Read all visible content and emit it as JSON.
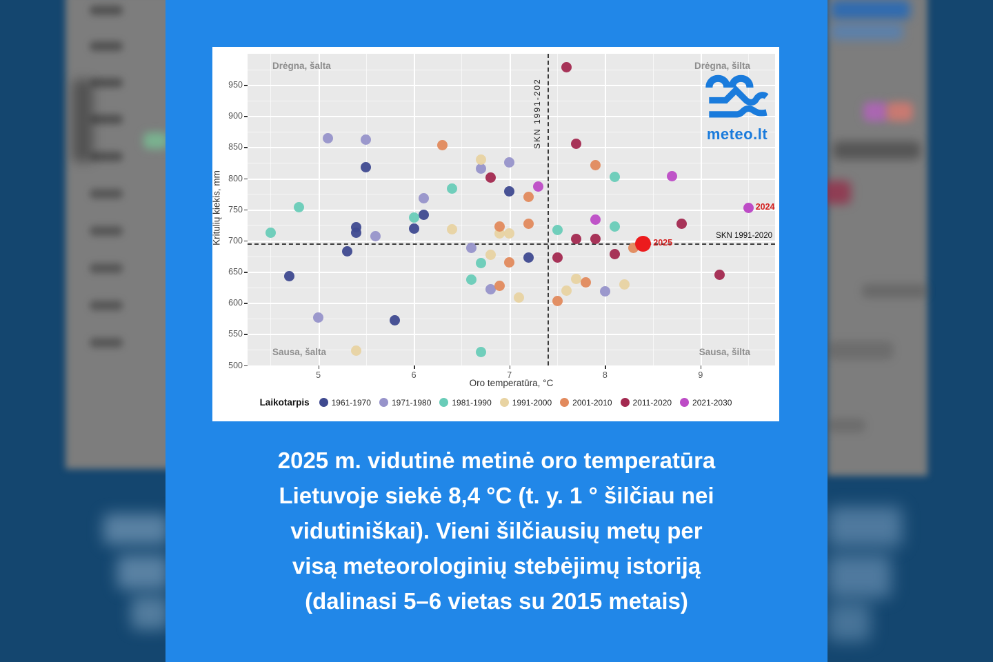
{
  "caption": {
    "lines": [
      "2025 m. vidutinė metinė oro temperatūra",
      "Lietuvoje siekė 8,4 °C (t. y. 1 ° šilčiau nei",
      "vidutiniškai). Vieni šilčiausių metų per",
      "visą meteorologinių stebėjimų istoriją",
      "(dalinasi 5–6 vietas su 2015 metais)"
    ],
    "text_color": "#ffffff",
    "background_color": "#2187e8"
  },
  "logo": {
    "text": "meteo.lt",
    "color": "#1a7bdc"
  },
  "chart_data": {
    "type": "scatter",
    "title": "",
    "xlabel": "Oro temperatūra, °C",
    "ylabel": "Kritulių kiekis, mm",
    "xlim": [
      4.26,
      9.78
    ],
    "ylim": [
      499.5,
      1000
    ],
    "x_ticks": [
      5,
      6,
      7,
      8,
      9
    ],
    "x_minor_ticks": [
      4.5,
      5.5,
      6.5,
      7.5,
      8.5,
      9.5
    ],
    "y_ticks": [
      500,
      550,
      600,
      650,
      700,
      750,
      800,
      850,
      900,
      950
    ],
    "y_minor_ticks": [
      525,
      575,
      625,
      675,
      725,
      775,
      825,
      875,
      925,
      975
    ],
    "grid": true,
    "panel_color": "#e9e9e9",
    "legend_position": "bottom",
    "legend_title": "Laikotarpis",
    "quadrants": {
      "top_left": "Drėgna, šalta",
      "top_right": "Drėgna, šilta",
      "bottom_left": "Sausa, šalta",
      "bottom_right": "Sausa, šilta"
    },
    "reference_lines": {
      "vertical": {
        "x": 7.4,
        "label": "SKN 1991-202"
      },
      "horizontal": {
        "y": 695,
        "label": "SKN 1991-2020"
      }
    },
    "series": [
      {
        "name": "1961-1970",
        "color": "#3f4a90",
        "points": [
          [
            4.7,
            643
          ],
          [
            5.3,
            683
          ],
          [
            5.4,
            721
          ],
          [
            5.4,
            713
          ],
          [
            5.5,
            818
          ],
          [
            5.8,
            572
          ],
          [
            6.0,
            719
          ],
          [
            6.1,
            741
          ],
          [
            7.0,
            779
          ],
          [
            7.2,
            673
          ]
        ]
      },
      {
        "name": "1971-1980",
        "color": "#9793ca",
        "points": [
          [
            5.0,
            577
          ],
          [
            5.1,
            864
          ],
          [
            5.5,
            862
          ],
          [
            5.6,
            707
          ],
          [
            6.1,
            768
          ],
          [
            6.6,
            688
          ],
          [
            6.7,
            816
          ],
          [
            6.8,
            622
          ],
          [
            7.0,
            826
          ],
          [
            8.0,
            619
          ]
        ]
      },
      {
        "name": "1981-1990",
        "color": "#69ccb8",
        "points": [
          [
            4.5,
            713
          ],
          [
            4.8,
            754
          ],
          [
            6.0,
            737
          ],
          [
            6.4,
            783
          ],
          [
            6.6,
            637
          ],
          [
            6.7,
            664
          ],
          [
            6.7,
            521
          ],
          [
            7.5,
            717
          ],
          [
            8.1,
            802
          ],
          [
            8.1,
            723
          ]
        ]
      },
      {
        "name": "1991-2000",
        "color": "#e8d3a2",
        "points": [
          [
            5.4,
            523
          ],
          [
            6.4,
            718
          ],
          [
            6.7,
            830
          ],
          [
            6.8,
            677
          ],
          [
            6.9,
            712
          ],
          [
            7.0,
            712
          ],
          [
            7.1,
            609
          ],
          [
            7.6,
            620
          ],
          [
            7.7,
            638
          ],
          [
            8.2,
            630
          ]
        ]
      },
      {
        "name": "2001-2010",
        "color": "#e28a5d",
        "points": [
          [
            6.3,
            853
          ],
          [
            6.9,
            723
          ],
          [
            6.9,
            627
          ],
          [
            7.0,
            665
          ],
          [
            7.2,
            770
          ],
          [
            7.2,
            727
          ],
          [
            7.5,
            603
          ],
          [
            7.8,
            633
          ],
          [
            7.9,
            821
          ],
          [
            8.3,
            688
          ]
        ]
      },
      {
        "name": "2011-2020",
        "color": "#a32950",
        "points": [
          [
            6.8,
            801
          ],
          [
            7.5,
            673
          ],
          [
            7.6,
            978
          ],
          [
            7.7,
            856
          ],
          [
            7.7,
            703
          ],
          [
            7.9,
            703
          ],
          [
            8.1,
            678
          ],
          [
            8.8,
            727
          ],
          [
            9.2,
            645
          ]
        ]
      },
      {
        "name": "2021-2030",
        "color": "#bd4cc6",
        "points": [
          [
            7.3,
            787
          ],
          [
            7.9,
            734
          ],
          [
            8.7,
            804
          ]
        ]
      }
    ],
    "highlights": [
      {
        "label": "2024",
        "x": 9.5,
        "y": 753,
        "color": "#bd4cc6",
        "large": false
      },
      {
        "label": "2025",
        "x": 8.4,
        "y": 695,
        "color": "#ec1b1d",
        "large": true
      }
    ],
    "highlight_label_color": "#d31f1f"
  }
}
